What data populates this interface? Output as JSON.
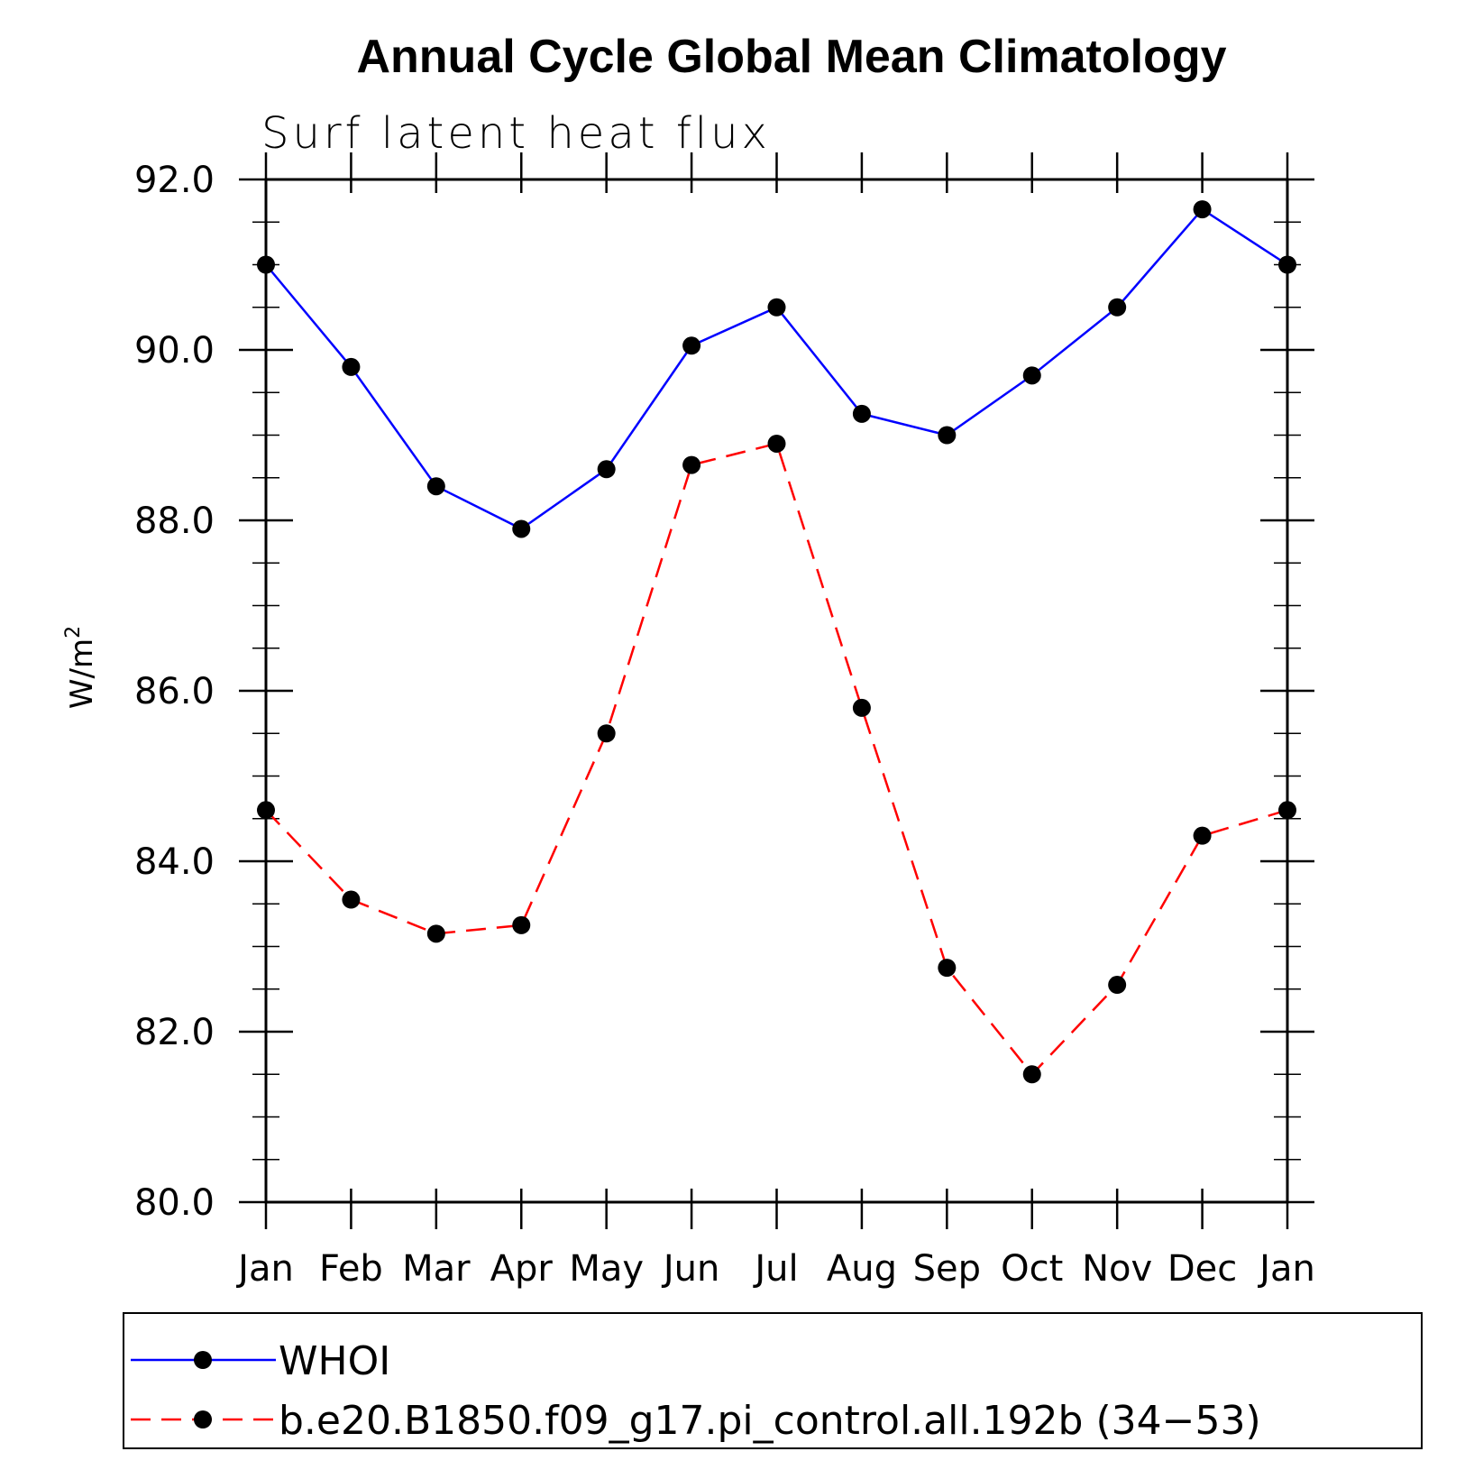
{
  "chart_data": {
    "type": "line",
    "title": "Annual Cycle Global Mean Climatology",
    "subtitle": "Surf latent heat flux",
    "ylabel": "W/m",
    "ylabel_superscript": "2",
    "xlabel": "",
    "categories": [
      "Jan",
      "Feb",
      "Mar",
      "Apr",
      "May",
      "Jun",
      "Jul",
      "Aug",
      "Sep",
      "Oct",
      "Nov",
      "Dec",
      "Jan"
    ],
    "ylim": [
      80.0,
      92.0
    ],
    "yticks": [
      "80.0",
      "82.0",
      "84.0",
      "86.0",
      "88.0",
      "90.0",
      "92.0"
    ],
    "grid": false,
    "legend_position": "bottom",
    "series": [
      {
        "name": "WHOI",
        "color": "#0000ff",
        "dash": "solid",
        "marker": "filled-circle",
        "values": [
          91.0,
          89.8,
          88.4,
          87.9,
          88.6,
          90.05,
          90.5,
          89.25,
          89.0,
          89.7,
          90.5,
          91.65,
          91.0
        ]
      },
      {
        "name": "b.e20.B1850.f09_g17.pi_control.all.192b (34−53)",
        "color": "#ff0000",
        "dash": "dashed",
        "marker": "filled-circle",
        "values": [
          84.6,
          83.55,
          83.15,
          83.25,
          85.5,
          88.65,
          88.9,
          85.8,
          82.75,
          81.5,
          82.55,
          84.3,
          84.6
        ]
      }
    ]
  }
}
